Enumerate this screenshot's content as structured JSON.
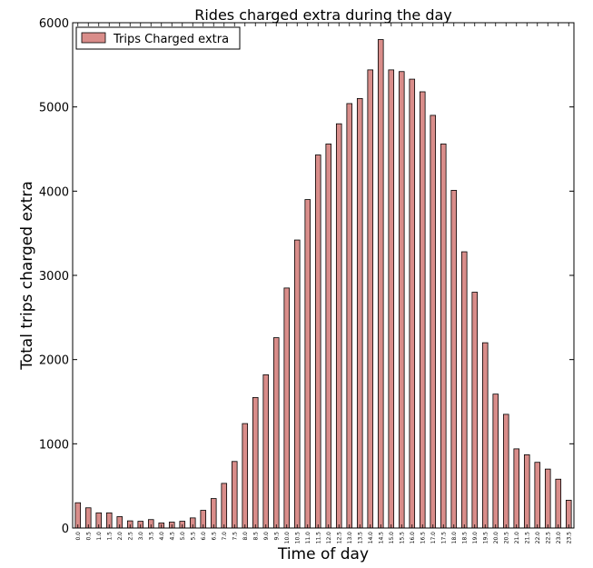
{
  "chart_data": {
    "type": "bar",
    "title": "Rides charged extra during the day",
    "xlabel": "Time of day",
    "ylabel": "Total trips charged extra",
    "ylim": [
      0,
      6000
    ],
    "yticks": [
      "0",
      "1000",
      "2000",
      "3000",
      "4000",
      "5000",
      "6000"
    ],
    "categories": [
      "0.0",
      "0.5",
      "1.0",
      "1.5",
      "2.0",
      "2.5",
      "3.0",
      "3.5",
      "4.0",
      "4.5",
      "5.0",
      "5.5",
      "6.0",
      "6.5",
      "7.0",
      "7.5",
      "8.0",
      "8.5",
      "9.0",
      "9.5",
      "10.0",
      "10.5",
      "11.0",
      "11.5",
      "12.0",
      "12.5",
      "13.0",
      "13.5",
      "14.0",
      "14.5",
      "15.0",
      "15.5",
      "16.0",
      "16.5",
      "17.0",
      "17.5",
      "18.0",
      "18.5",
      "19.0",
      "19.5",
      "20.0",
      "20.5",
      "21.0",
      "21.5",
      "22.0",
      "22.5",
      "23.0",
      "23.5"
    ],
    "series": [
      {
        "name": "Trips Charged extra",
        "values": [
          300,
          240,
          180,
          180,
          135,
          85,
          80,
          100,
          60,
          70,
          80,
          120,
          210,
          350,
          530,
          790,
          1240,
          1550,
          1820,
          2260,
          2850,
          3420,
          3900,
          4430,
          4560,
          4800,
          5040,
          5100,
          5440,
          5800,
          5440,
          5420,
          5330,
          5180,
          4900,
          4560,
          4010,
          3280,
          2800,
          2200,
          1590,
          1350,
          940,
          870,
          780,
          700,
          580,
          330
        ]
      }
    ],
    "legend_position": "top-left",
    "grid": false,
    "colors": {
      "bar_fill": "#d98d8a",
      "bar_stroke": "#000000"
    }
  }
}
